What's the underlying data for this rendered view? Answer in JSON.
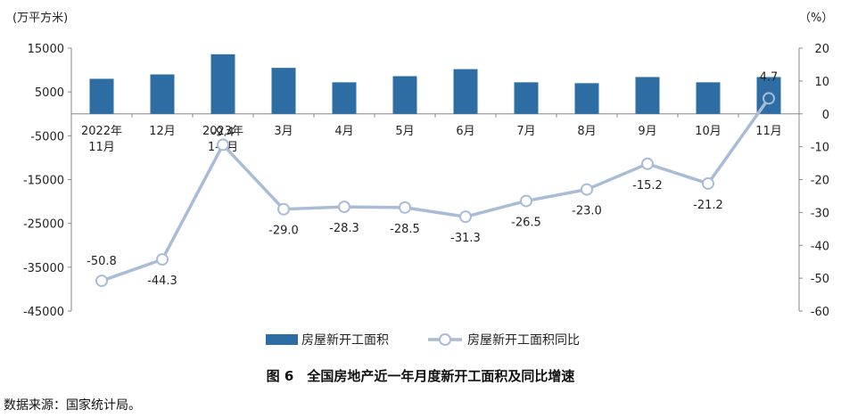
{
  "chart_data": {
    "type": "bar+line",
    "categories": [
      [
        "2022年",
        "11月"
      ],
      [
        "12月"
      ],
      [
        "2023年",
        "1-2月"
      ],
      [
        "3月"
      ],
      [
        "4月"
      ],
      [
        "5月"
      ],
      [
        "6月"
      ],
      [
        "7月"
      ],
      [
        "8月"
      ],
      [
        "9月"
      ],
      [
        "10月"
      ],
      [
        "11月"
      ]
    ],
    "series": [
      {
        "name": "房屋新开工面积",
        "type": "bar",
        "axis": "left",
        "color": "#2e6da4",
        "values": [
          8000,
          9000,
          13600,
          10500,
          7200,
          8600,
          10200,
          7200,
          7000,
          8400,
          7200,
          8400
        ]
      },
      {
        "name": "房屋新开工面积同比",
        "type": "line",
        "axis": "right",
        "color": "#a9bcd6",
        "values": [
          -50.8,
          -44.3,
          -9.4,
          -29.0,
          -28.3,
          -28.5,
          -31.3,
          -26.5,
          -23.0,
          -15.2,
          -21.2,
          4.7
        ],
        "labels": [
          "-50.8",
          "-44.3",
          "-9.4",
          "-29.0",
          "-28.3",
          "-28.5",
          "-31.3",
          "-26.5",
          "-23.0",
          "-15.2",
          "-21.2",
          "4.7"
        ]
      }
    ],
    "left_axis": {
      "unit": "(万平方米)",
      "ylim": [
        -45000,
        15000
      ],
      "ticks": [
        15000,
        5000,
        -5000,
        -15000,
        -25000,
        -35000,
        -45000
      ],
      "tick_labels": [
        "15000",
        "5000",
        "-5000",
        "-15000",
        "-25000",
        "-35000",
        "-45000"
      ]
    },
    "right_axis": {
      "unit": "（%）",
      "ylim": [
        -60,
        20
      ],
      "ticks": [
        20,
        10,
        0,
        -10,
        -20,
        -30,
        -40,
        -50,
        -60
      ],
      "tick_labels": [
        "20",
        "10",
        "0",
        "-10",
        "-20",
        "-30",
        "-40",
        "-50",
        "-60"
      ]
    },
    "grid": false,
    "legend_position": "bottom",
    "title": "图 6　全国房地产近一年月度新开工面积及同比增速"
  },
  "caption": "图 6　全国房地产近一年月度新开工面积及同比增速",
  "source": "数据来源：国家统计局。"
}
